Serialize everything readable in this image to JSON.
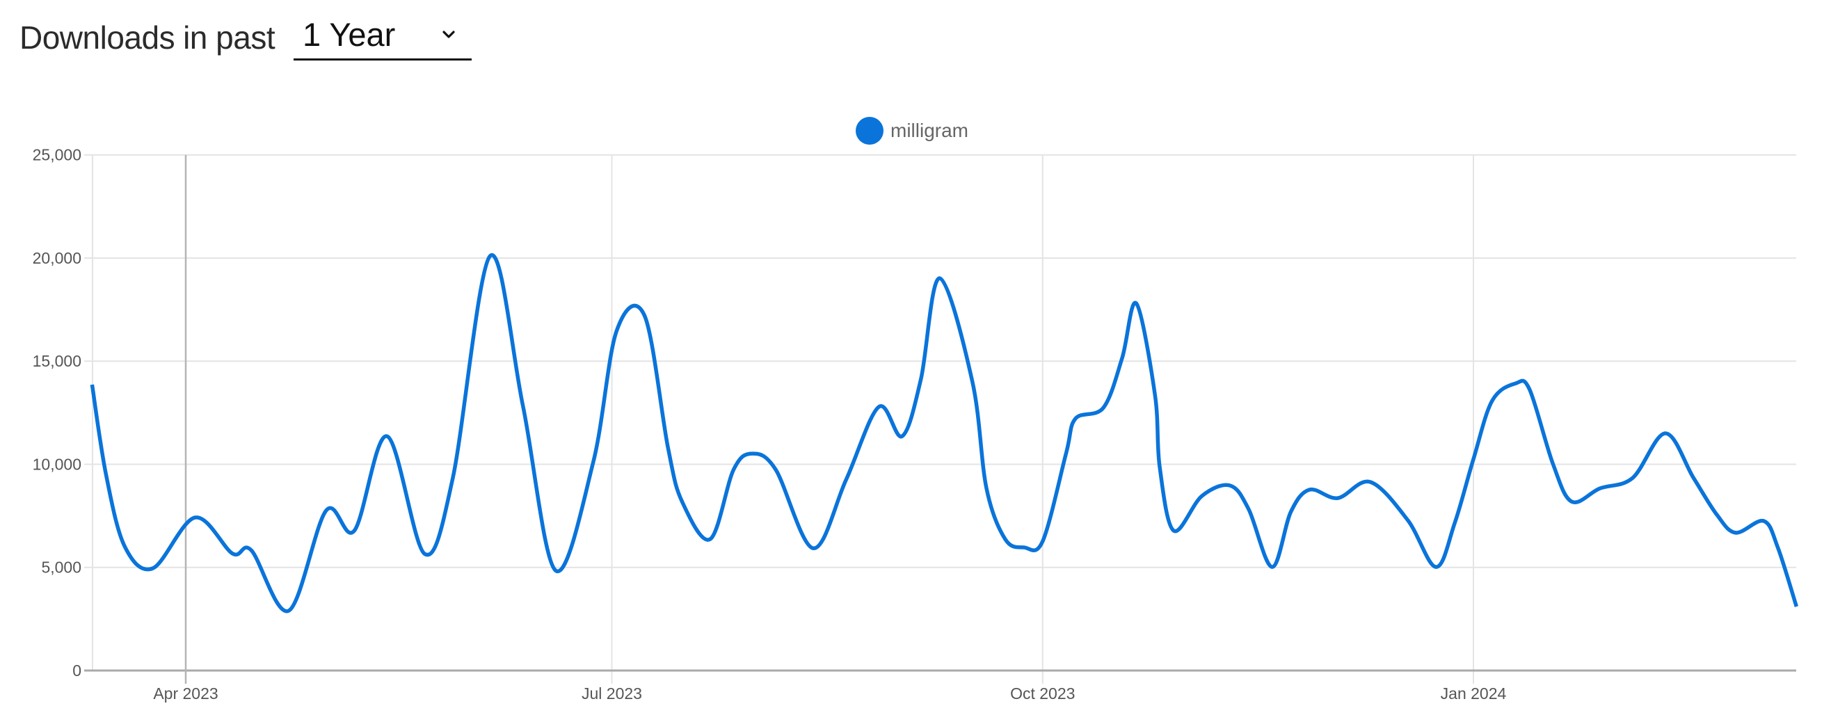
{
  "header": {
    "title_strong": "Downloads",
    "title_light": "in past",
    "range_select": {
      "selected": "1 Year",
      "icon": "chevron-down-icon"
    }
  },
  "legend": {
    "label": "milligram",
    "color": "#0A74DA"
  },
  "colors": {
    "series": "#0A74DA",
    "grid": "#e4e4e4",
    "axis": "#aaaaaa",
    "crosshair": "#b5b5b5"
  },
  "chart_data": {
    "type": "line",
    "title": "Downloads in past 1 Year",
    "xlabel": "",
    "ylabel": "",
    "ylim": [
      0,
      25000
    ],
    "yticks": [
      0,
      5000,
      10000,
      15000,
      20000,
      25000
    ],
    "ytick_labels": [
      "0",
      "5,000",
      "10,000",
      "15,000",
      "20,000",
      "25,000"
    ],
    "xticks": [
      {
        "label": "Apr 2023",
        "date": "2023-04-01"
      },
      {
        "label": "Jul 2023",
        "date": "2023-07-01"
      },
      {
        "label": "Oct 2023",
        "date": "2023-10-01"
      },
      {
        "label": "Jan 2024",
        "date": "2024-01-01"
      }
    ],
    "x_range": [
      "2023-03-12",
      "2024-03-10"
    ],
    "grid": true,
    "legend_position": "top-center",
    "hover_crosshair_date": "2023-04-01",
    "series": [
      {
        "name": "milligram",
        "points": [
          [
            "2023-03-12",
            13860
          ],
          [
            "2023-03-15",
            9470
          ],
          [
            "2023-03-19",
            6000
          ],
          [
            "2023-03-25",
            4960
          ],
          [
            "2023-04-03",
            7420
          ],
          [
            "2023-04-11",
            5670
          ],
          [
            "2023-04-15",
            5830
          ],
          [
            "2023-04-23",
            2900
          ],
          [
            "2023-05-01",
            7760
          ],
          [
            "2023-05-07",
            6780
          ],
          [
            "2023-05-14",
            11360
          ],
          [
            "2023-05-22",
            5660
          ],
          [
            "2023-05-28",
            9300
          ],
          [
            "2023-06-05",
            20100
          ],
          [
            "2023-06-12",
            12850
          ],
          [
            "2023-06-19",
            4850
          ],
          [
            "2023-06-27",
            10080
          ],
          [
            "2023-07-02",
            16450
          ],
          [
            "2023-07-08",
            17200
          ],
          [
            "2023-07-13",
            10790
          ],
          [
            "2023-07-16",
            8190
          ],
          [
            "2023-07-22",
            6370
          ],
          [
            "2023-07-27",
            9740
          ],
          [
            "2023-07-31",
            10520
          ],
          [
            "2023-08-05",
            9740
          ],
          [
            "2023-08-13",
            5930
          ],
          [
            "2023-08-20",
            9240
          ],
          [
            "2023-08-27",
            12780
          ],
          [
            "2023-09-01",
            11360
          ],
          [
            "2023-09-05",
            14130
          ],
          [
            "2023-09-09",
            19020
          ],
          [
            "2023-09-16",
            14000
          ],
          [
            "2023-09-19",
            8840
          ],
          [
            "2023-09-23",
            6370
          ],
          [
            "2023-09-27",
            5970
          ],
          [
            "2023-10-01",
            6270
          ],
          [
            "2023-10-06",
            10520
          ],
          [
            "2023-10-08",
            12210
          ],
          [
            "2023-10-14",
            12750
          ],
          [
            "2023-10-18",
            15170
          ],
          [
            "2023-10-21",
            17800
          ],
          [
            "2023-10-25",
            13350
          ],
          [
            "2023-10-26",
            9880
          ],
          [
            "2023-10-29",
            6780
          ],
          [
            "2023-11-04",
            8460
          ],
          [
            "2023-11-10",
            8970
          ],
          [
            "2023-11-14",
            7820
          ],
          [
            "2023-11-19",
            5020
          ],
          [
            "2023-11-23",
            7690
          ],
          [
            "2023-11-27",
            8770
          ],
          [
            "2023-12-03",
            8360
          ],
          [
            "2023-12-10",
            9140
          ],
          [
            "2023-12-18",
            7280
          ],
          [
            "2023-12-24",
            5020
          ],
          [
            "2023-12-28",
            7150
          ],
          [
            "2024-01-01",
            10250
          ],
          [
            "2024-01-05",
            13080
          ],
          [
            "2024-01-10",
            13920
          ],
          [
            "2024-01-13",
            13620
          ],
          [
            "2024-01-18",
            10010
          ],
          [
            "2024-01-22",
            8190
          ],
          [
            "2024-01-28",
            8830
          ],
          [
            "2024-02-04",
            9340
          ],
          [
            "2024-02-11",
            11500
          ],
          [
            "2024-02-17",
            9340
          ],
          [
            "2024-02-22",
            7550
          ],
          [
            "2024-02-26",
            6680
          ],
          [
            "2024-03-03",
            7250
          ],
          [
            "2024-03-06",
            5970
          ],
          [
            "2024-03-10",
            3100
          ]
        ]
      }
    ]
  }
}
